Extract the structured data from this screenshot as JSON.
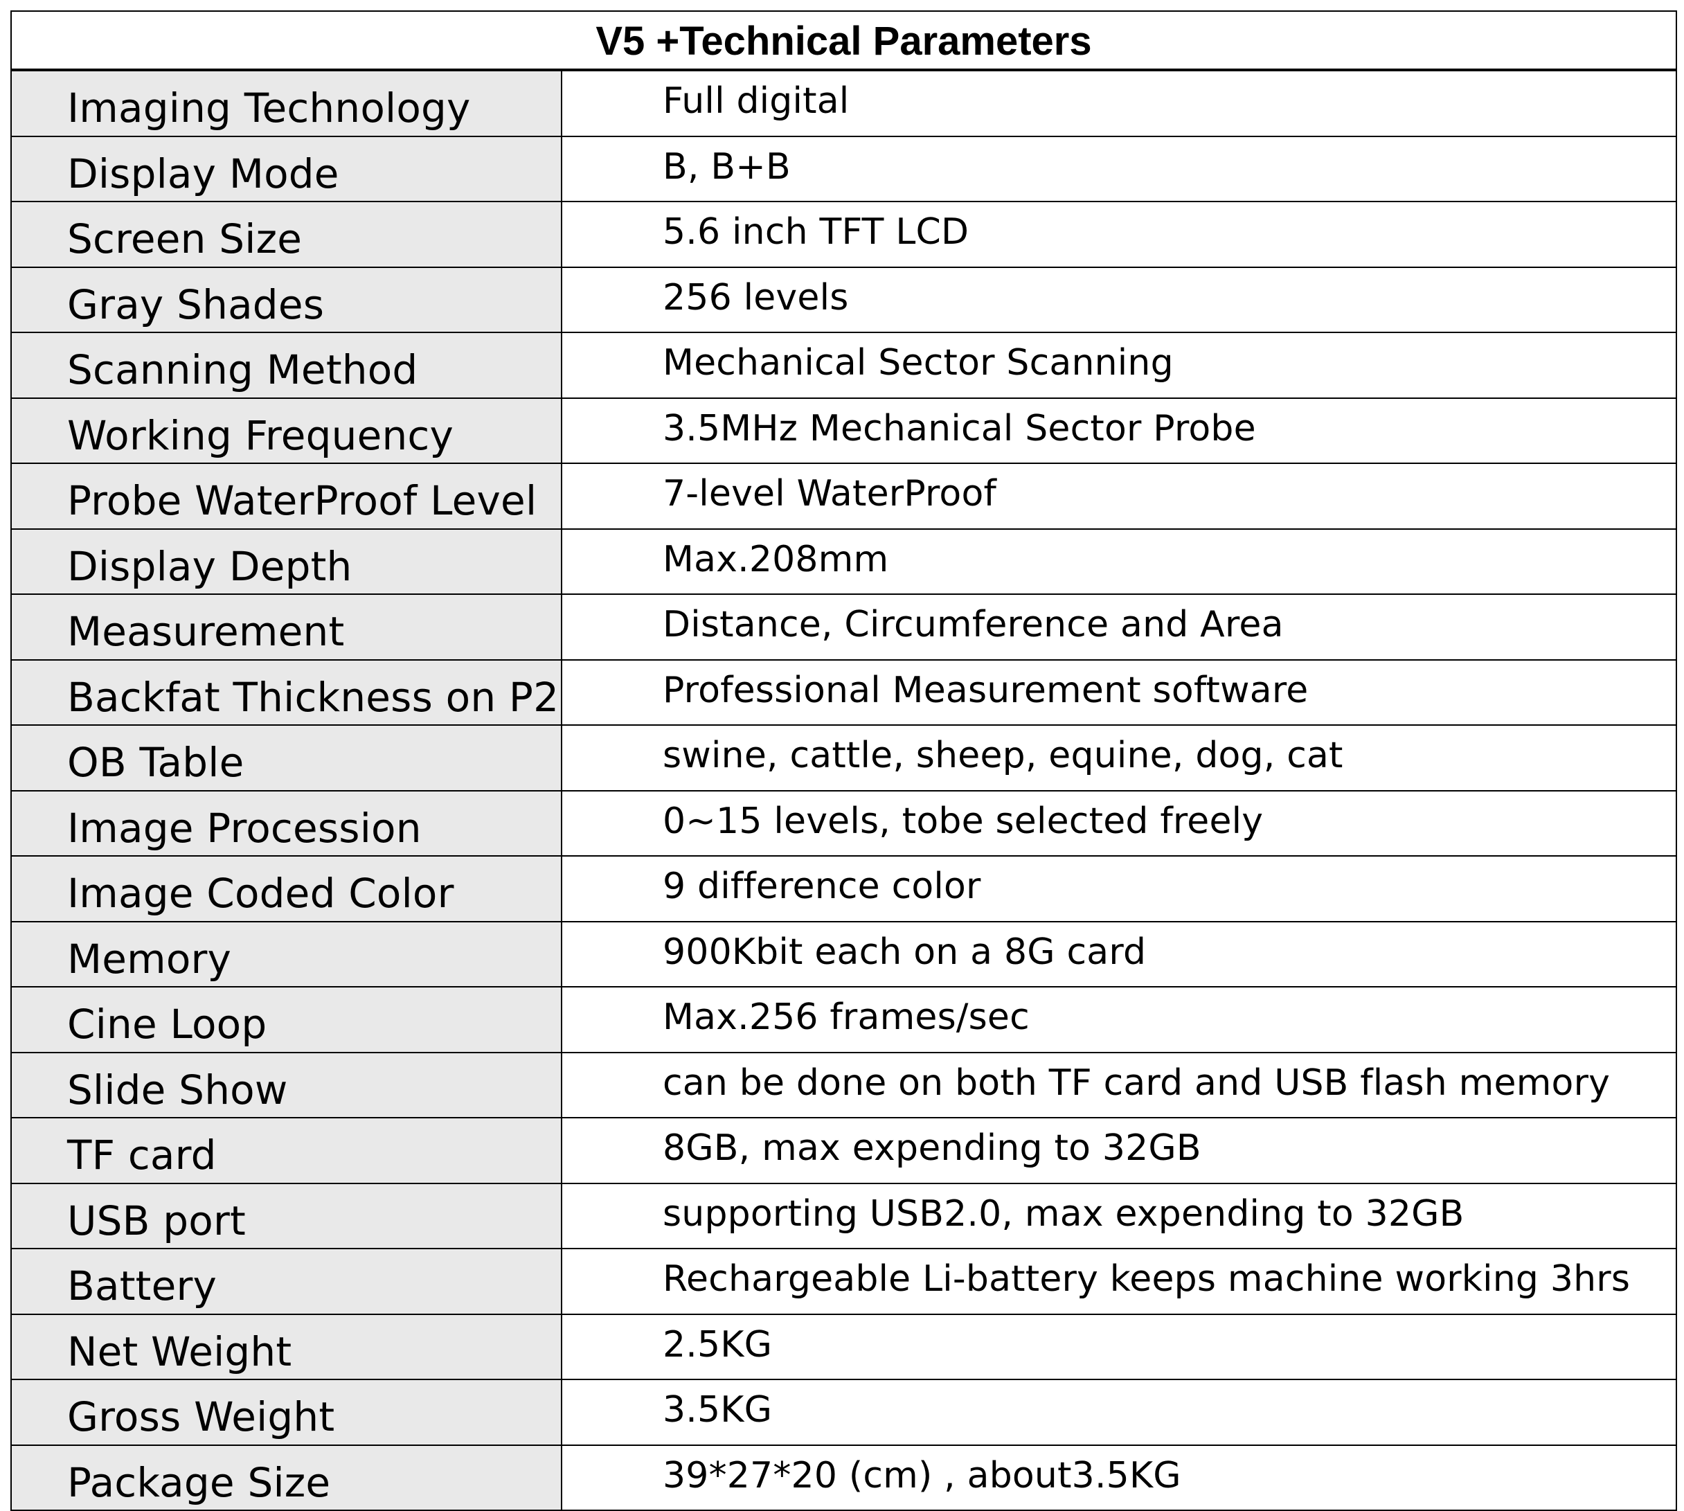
{
  "title": "V5 +Technical Parameters",
  "rows": [
    {
      "param": "Imaging Technology",
      "value": "Full digital"
    },
    {
      "param": "Display Mode",
      "value": "B, B+B"
    },
    {
      "param": "Screen Size",
      "value": "5.6 inch TFT LCD"
    },
    {
      "param": "Gray Shades",
      "value": "256 levels"
    },
    {
      "param": "Scanning Method",
      "value": "Mechanical Sector Scanning"
    },
    {
      "param": "Working Frequency",
      "value": "3.5MHz Mechanical Sector Probe"
    },
    {
      "param": "Probe WaterProof Level",
      "value": "7-level WaterProof"
    },
    {
      "param": "Display Depth",
      "value": "Max.208mm"
    },
    {
      "param": "Measurement",
      "value": "Distance,  Circumference and Area"
    },
    {
      "param": "Backfat Thickness on P2",
      "value": "Professional Measurement software"
    },
    {
      "param": "OB Table",
      "value": "swine, cattle, sheep, equine, dog, cat"
    },
    {
      "param": "Image Procession",
      "value": "0~15 levels, tobe selected freely"
    },
    {
      "param": "Image Coded Color",
      "value": "9 difference color"
    },
    {
      "param": "Memory",
      "value": "900Kbit each on a 8G card"
    },
    {
      "param": "Cine Loop",
      "value": "Max.256 frames/sec"
    },
    {
      "param": "Slide Show",
      "value": "can be done on both TF card and USB flash memory"
    },
    {
      "param": "TF card",
      "value": "8GB, max expending to 32GB"
    },
    {
      "param": "USB port",
      "value": "supporting USB2.0, max expending to 32GB"
    },
    {
      "param": "Battery",
      "value": "Rechargeable Li-battery keeps machine working 3hrs"
    },
    {
      "param": "Net Weight",
      "value": "2.5KG"
    },
    {
      "param": "Gross Weight",
      "value": "3.5KG"
    },
    {
      "param": "Package Size",
      "value": "39*27*20 (cm) , about3.5KG"
    }
  ],
  "colors": {
    "param_background": "#e9e9e9",
    "value_background": "#ffffff",
    "border": "#000000"
  }
}
